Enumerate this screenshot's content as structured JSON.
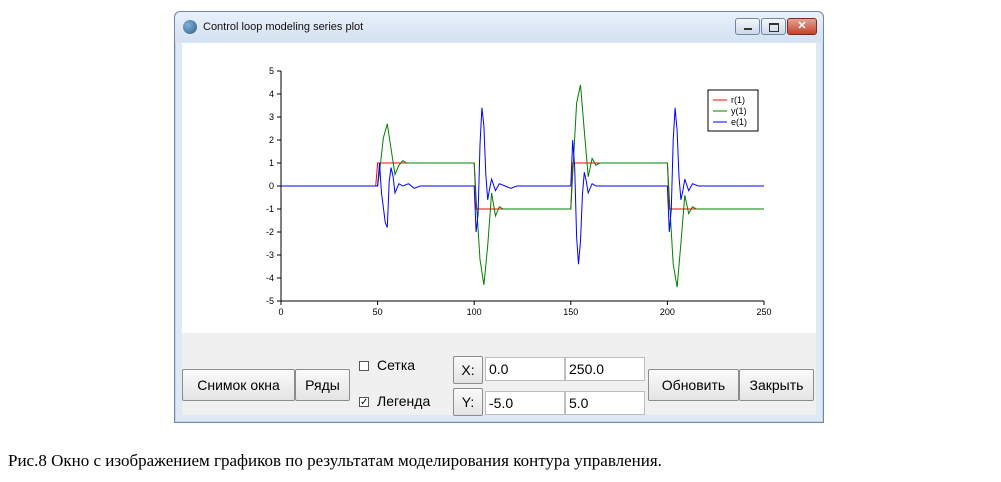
{
  "window": {
    "title": "Control loop modeling series plot",
    "icon": "app-globe-icon",
    "controls": {
      "minimize": "minimize-icon",
      "maximize": "maximize-icon",
      "close": "✕"
    }
  },
  "chart_data": {
    "type": "line",
    "title": "",
    "xlabel": "",
    "ylabel": "",
    "xlim": [
      0,
      250
    ],
    "ylim": [
      -5,
      5
    ],
    "x_ticks": [
      "0",
      "50",
      "100",
      "150",
      "200",
      "250"
    ],
    "y_ticks": [
      "5",
      "4",
      "3",
      "2",
      "1",
      "0",
      "-1",
      "-2",
      "-3",
      "-4",
      "-5"
    ],
    "grid": false,
    "legend_position": "top-right",
    "series": [
      {
        "name": "r(1)",
        "color": "#ff0000",
        "x": [
          0,
          49,
          50,
          100,
          101,
          150,
          151,
          200,
          201,
          250
        ],
        "y": [
          0,
          0,
          1,
          1,
          -1,
          -1,
          1,
          1,
          -1,
          -1
        ]
      },
      {
        "name": "y(1)",
        "color": "#008000",
        "x": [
          0,
          50,
          51,
          53,
          55,
          57,
          59,
          61,
          63,
          65,
          68,
          70,
          100,
          101,
          103,
          105,
          107,
          109,
          111,
          113,
          115,
          118,
          120,
          150,
          151,
          153,
          155,
          157,
          159,
          161,
          163,
          165,
          168,
          170,
          200,
          201,
          203,
          205,
          207,
          209,
          211,
          213,
          215,
          218,
          220,
          250
        ],
        "y": [
          0,
          0,
          0.6,
          2.1,
          2.7,
          1.6,
          0.5,
          0.9,
          1.1,
          1.0,
          1.0,
          1.0,
          1.0,
          -0.5,
          -3.2,
          -4.3,
          -2.6,
          -0.3,
          -1.3,
          -0.9,
          -1.0,
          -1.0,
          -1.0,
          -1.0,
          0.5,
          3.6,
          4.4,
          2.4,
          0.4,
          1.2,
          0.9,
          1.0,
          1.0,
          1.0,
          1.0,
          -0.5,
          -3.4,
          -4.4,
          -2.5,
          -0.4,
          -1.2,
          -0.9,
          -1.0,
          -1.0,
          -1.0,
          -1.0
        ]
      },
      {
        "name": "e(1)",
        "color": "#0000ff",
        "x": [
          0,
          50,
          51,
          52,
          54,
          55,
          56,
          57,
          58,
          59,
          61,
          63,
          66,
          69,
          72,
          100,
          101,
          102,
          103,
          104,
          105,
          106,
          107,
          108,
          109,
          111,
          113,
          116,
          119,
          122,
          150,
          151,
          152,
          153,
          154,
          155,
          156,
          157,
          158,
          159,
          161,
          163,
          166,
          169,
          172,
          200,
          201,
          202,
          203,
          204,
          205,
          206,
          207,
          208,
          209,
          211,
          213,
          216,
          219,
          222,
          250
        ],
        "y": [
          0,
          0,
          1.0,
          -0.3,
          -1.6,
          -1.8,
          0.2,
          0.8,
          0.4,
          -0.3,
          0.1,
          0.0,
          0.1,
          -0.1,
          0.0,
          0.0,
          -2.0,
          -1.2,
          1.8,
          3.4,
          2.6,
          0.5,
          -0.6,
          -0.1,
          0.3,
          -0.2,
          0.1,
          0.0,
          -0.1,
          0.0,
          0.0,
          2.0,
          0.8,
          -2.2,
          -3.4,
          -2.4,
          -0.4,
          0.6,
          0.2,
          -0.3,
          0.1,
          0.0,
          0.0,
          0.0,
          0.0,
          0.0,
          -2.0,
          -1.0,
          2.0,
          3.4,
          2.4,
          0.4,
          -0.6,
          -0.2,
          0.3,
          -0.2,
          0.1,
          0.0,
          0.0,
          0.0,
          0.0
        ]
      }
    ]
  },
  "toolbar": {
    "snapshot_label": "Снимок окна",
    "series_label": "Ряды",
    "grid_label": "Сетка",
    "grid_checked": false,
    "legend_label": "Легенда",
    "legend_checked": true,
    "x_label": "X:",
    "x_min": "0.0",
    "x_max": "250.0",
    "y_label": "Y:",
    "y_min": "-5.0",
    "y_max": "5.0",
    "refresh_label": "Обновить",
    "close_label": "Закрыть"
  },
  "caption": "Рис.8 Окно с изображением графиков по результатам моделирования контура управления."
}
